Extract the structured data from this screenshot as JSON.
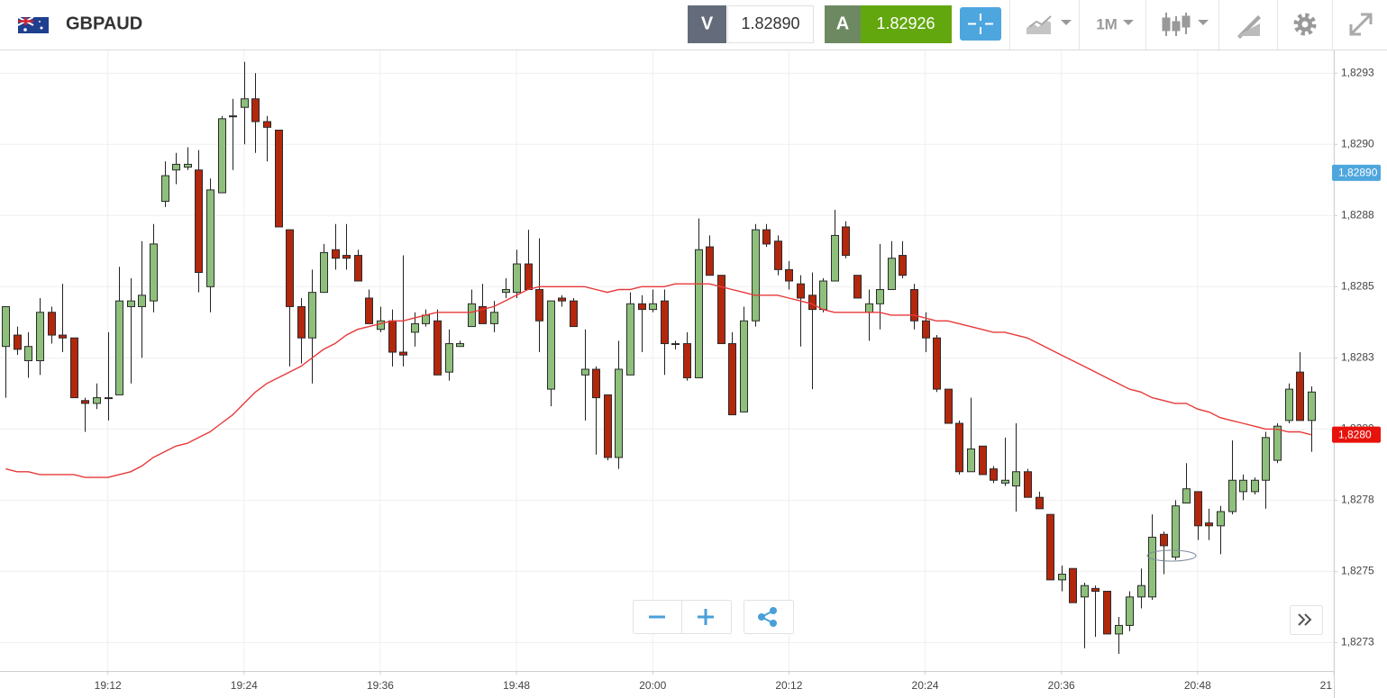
{
  "header": {
    "symbol": "GBPAUD",
    "sell_label": "V",
    "sell_price": "1.82890",
    "buy_label": "A",
    "buy_price": "1.82926",
    "timeframe": "1M"
  },
  "chart_data": {
    "type": "candlestick",
    "x": [
      "19:03",
      "19:04",
      "19:05",
      "19:06",
      "19:07",
      "19:08",
      "19:09",
      "19:10",
      "19:11",
      "19:12",
      "19:13",
      "19:14",
      "19:15",
      "19:16",
      "19:17",
      "19:18",
      "19:19",
      "19:20",
      "19:21",
      "19:22",
      "19:23",
      "19:24",
      "19:25",
      "19:26",
      "19:27",
      "19:28",
      "19:29",
      "19:30",
      "19:31",
      "19:32",
      "19:33",
      "19:34",
      "19:35",
      "19:36",
      "19:37",
      "19:38",
      "19:39",
      "19:40",
      "19:41",
      "19:42",
      "19:43",
      "19:44",
      "19:45",
      "19:46",
      "19:47",
      "19:48",
      "19:49",
      "19:50",
      "19:51",
      "19:52",
      "19:53",
      "19:54",
      "19:55",
      "19:56",
      "19:57",
      "19:58",
      "19:59",
      "20:00",
      "20:01",
      "20:02",
      "20:03",
      "20:04",
      "20:05",
      "20:06",
      "20:07",
      "20:08",
      "20:09",
      "20:10",
      "20:11",
      "20:12",
      "20:13",
      "20:14",
      "20:15",
      "20:16",
      "20:17",
      "20:18",
      "20:19",
      "20:20",
      "20:21",
      "20:22",
      "20:23",
      "20:24",
      "20:25",
      "20:26",
      "20:27",
      "20:28",
      "20:29",
      "20:30",
      "20:31",
      "20:32",
      "20:33",
      "20:34",
      "20:35",
      "20:36",
      "20:37",
      "20:38",
      "20:39",
      "20:40",
      "20:41",
      "20:42",
      "20:43",
      "20:44",
      "20:45",
      "20:46",
      "20:47",
      "20:48",
      "20:49",
      "20:50",
      "20:51",
      "20:52",
      "20:53",
      "20:54",
      "20:55",
      "20:56",
      "20:57",
      "20:58"
    ],
    "open": [
      1.82829,
      1.82833,
      1.82824,
      1.82824,
      1.82841,
      1.82833,
      1.82832,
      1.8281,
      1.82809,
      1.82811,
      1.82812,
      1.82843,
      1.82843,
      1.82845,
      1.8288,
      1.82891,
      1.82892,
      1.82891,
      1.8285,
      1.82883,
      1.8291,
      1.82913,
      1.82916,
      1.82908,
      1.82905,
      1.8287,
      1.82843,
      1.82832,
      1.82848,
      1.82863,
      1.82861,
      1.82861,
      1.82846,
      1.82835,
      1.82838,
      1.82827,
      1.82834,
      1.82837,
      1.82838,
      1.8282,
      1.82829,
      1.82836,
      1.82843,
      1.82837,
      1.82848,
      1.82848,
      1.82858,
      1.82849,
      1.82814,
      1.82846,
      1.82845,
      1.82819,
      1.82821,
      1.82812,
      1.8279,
      1.82819,
      1.82844,
      1.82842,
      1.82845,
      1.8283,
      1.8283,
      1.82818,
      1.82864,
      1.82854,
      1.8283,
      1.82806,
      1.82838,
      1.8287,
      1.82866,
      1.82856,
      1.82851,
      1.82847,
      1.82842,
      1.82852,
      1.82871,
      1.82854,
      1.82841,
      1.82844,
      1.82849,
      1.82861,
      1.82849,
      1.82838,
      1.82832,
      1.82814,
      1.82802,
      1.82785,
      1.82794,
      1.82786,
      1.82781,
      1.8278,
      1.82785,
      1.82776,
      1.8277,
      1.82747,
      1.82751,
      1.82741,
      1.82744,
      1.82743,
      1.82728,
      1.82731,
      1.82741,
      1.82741,
      1.82763,
      1.82755,
      1.82774,
      1.82778,
      1.82767,
      1.82766,
      1.82771,
      1.82778,
      1.82778,
      1.82782,
      1.82789,
      1.82803,
      1.8282,
      1.82803
    ],
    "high": [
      1.82843,
      1.82836,
      1.82834,
      1.82846,
      1.82843,
      1.82851,
      1.82832,
      1.82811,
      1.82816,
      1.82834,
      1.82857,
      1.82853,
      1.82866,
      1.82872,
      1.82894,
      1.82897,
      1.82899,
      1.82898,
      1.82888,
      1.8291,
      1.82916,
      1.82929,
      1.82925,
      1.8291,
      1.82905,
      1.8287,
      1.82846,
      1.82856,
      1.82865,
      1.82872,
      1.82872,
      1.82863,
      1.82849,
      1.82843,
      1.82842,
      1.82861,
      1.82841,
      1.82842,
      1.82842,
      1.82835,
      1.82831,
      1.82849,
      1.82851,
      1.82845,
      1.82853,
      1.82863,
      1.8287,
      1.82867,
      1.82845,
      1.82847,
      1.82846,
      1.82835,
      1.82822,
      1.82812,
      1.82831,
      1.82848,
      1.82847,
      1.82849,
      1.82849,
      1.82831,
      1.82834,
      1.82874,
      1.82868,
      1.82854,
      1.82834,
      1.82843,
      1.82872,
      1.82872,
      1.82868,
      1.82859,
      1.82854,
      1.82855,
      1.82853,
      1.82877,
      1.82873,
      1.82854,
      1.82849,
      1.82865,
      1.82866,
      1.82866,
      1.82851,
      1.82841,
      1.82833,
      1.82814,
      1.82803,
      1.82811,
      1.82794,
      1.82787,
      1.82797,
      1.82802,
      1.82786,
      1.82778,
      1.8277,
      1.82752,
      1.82751,
      1.82746,
      1.82745,
      1.82743,
      1.82734,
      1.82743,
      1.82751,
      1.8277,
      1.82764,
      1.82775,
      1.82788,
      1.82778,
      1.82772,
      1.82773,
      1.82796,
      1.82784,
      1.82783,
      1.82799,
      1.82802,
      1.82816,
      1.82827,
      1.82815
    ],
    "low": [
      1.82811,
      1.82826,
      1.82818,
      1.82819,
      1.8283,
      1.82827,
      1.82811,
      1.82799,
      1.82807,
      1.82803,
      1.82812,
      1.82816,
      1.82825,
      1.82841,
      1.82878,
      1.82886,
      1.82891,
      1.82848,
      1.82841,
      1.82883,
      1.82891,
      1.829,
      1.82897,
      1.82894,
      1.82871,
      1.82822,
      1.82823,
      1.82816,
      1.82848,
      1.82856,
      1.82856,
      1.82852,
      1.82837,
      1.82834,
      1.82822,
      1.82822,
      1.82829,
      1.82836,
      1.82819,
      1.82817,
      1.82829,
      1.82836,
      1.82837,
      1.82834,
      1.82846,
      1.82846,
      1.82849,
      1.82827,
      1.82808,
      1.82843,
      1.82836,
      1.82803,
      1.82791,
      1.82789,
      1.82786,
      1.82819,
      1.82827,
      1.82841,
      1.82819,
      1.82828,
      1.82817,
      1.82818,
      1.82854,
      1.8283,
      1.82805,
      1.82806,
      1.82836,
      1.82864,
      1.82854,
      1.82849,
      1.82829,
      1.82814,
      1.82841,
      1.82852,
      1.8286,
      1.82846,
      1.82831,
      1.82835,
      1.82849,
      1.82853,
      1.82835,
      1.82827,
      1.82813,
      1.82802,
      1.82784,
      1.82785,
      1.82784,
      1.82781,
      1.8278,
      1.82771,
      1.82776,
      1.82772,
      1.82747,
      1.82743,
      1.82739,
      1.82723,
      1.82727,
      1.82728,
      1.82721,
      1.82729,
      1.82737,
      1.8274,
      1.82749,
      1.82754,
      1.82774,
      1.82761,
      1.82761,
      1.82756,
      1.8277,
      1.82775,
      1.82777,
      1.82772,
      1.82788,
      1.82802,
      1.82803,
      1.82792
    ],
    "close": [
      1.82843,
      1.82828,
      1.82829,
      1.82841,
      1.82833,
      1.82832,
      1.82811,
      1.82809,
      1.82811,
      1.82811,
      1.82845,
      1.82845,
      1.82847,
      1.82865,
      1.82889,
      1.82893,
      1.82893,
      1.82855,
      1.82884,
      1.82909,
      1.8291,
      1.82916,
      1.82908,
      1.82906,
      1.82871,
      1.82843,
      1.82832,
      1.82848,
      1.82862,
      1.8286,
      1.8286,
      1.82852,
      1.82837,
      1.82838,
      1.82827,
      1.82826,
      1.82837,
      1.8284,
      1.82819,
      1.8283,
      1.8283,
      1.82844,
      1.82837,
      1.82841,
      1.82849,
      1.82858,
      1.82849,
      1.82838,
      1.82845,
      1.82845,
      1.82836,
      1.82821,
      1.82811,
      1.8279,
      1.82821,
      1.82844,
      1.82842,
      1.82844,
      1.8283,
      1.8283,
      1.82818,
      1.82863,
      1.82854,
      1.8283,
      1.82805,
      1.82838,
      1.8287,
      1.82865,
      1.82856,
      1.82852,
      1.82846,
      1.82842,
      1.82852,
      1.82868,
      1.82861,
      1.82846,
      1.82844,
      1.82849,
      1.8286,
      1.82854,
      1.82838,
      1.82832,
      1.82814,
      1.82802,
      1.82785,
      1.82793,
      1.82784,
      1.82782,
      1.82782,
      1.82785,
      1.82776,
      1.82772,
      1.82747,
      1.82749,
      1.82739,
      1.82745,
      1.82743,
      1.82728,
      1.82731,
      1.82741,
      1.82745,
      1.82762,
      1.82759,
      1.82773,
      1.82779,
      1.82766,
      1.82766,
      1.82771,
      1.82782,
      1.82782,
      1.82782,
      1.82797,
      1.82801,
      1.82814,
      1.82803,
      1.82813
    ],
    "up_color": "#8ec07c",
    "down_color": "#b3270d",
    "ma": {
      "color": "#e8393a",
      "values": [
        1.82786,
        1.82785,
        1.82785,
        1.82784,
        1.82784,
        1.82784,
        1.82784,
        1.82783,
        1.82783,
        1.82783,
        1.82784,
        1.82785,
        1.82787,
        1.8279,
        1.82792,
        1.82794,
        1.82795,
        1.82797,
        1.82799,
        1.82802,
        1.82805,
        1.82809,
        1.82813,
        1.82816,
        1.82818,
        1.8282,
        1.82822,
        1.82825,
        1.82828,
        1.8283,
        1.82833,
        1.82835,
        1.82836,
        1.82837,
        1.82838,
        1.82838,
        1.82839,
        1.8284,
        1.82841,
        1.82841,
        1.82841,
        1.82841,
        1.82842,
        1.82843,
        1.82845,
        1.82847,
        1.82849,
        1.8285,
        1.8285,
        1.8285,
        1.8285,
        1.8285,
        1.82849,
        1.82848,
        1.82849,
        1.82849,
        1.8285,
        1.8285,
        1.8285,
        1.82851,
        1.82851,
        1.82851,
        1.82851,
        1.8285,
        1.82849,
        1.82848,
        1.82847,
        1.82847,
        1.82847,
        1.82846,
        1.82845,
        1.82844,
        1.82842,
        1.82841,
        1.82841,
        1.82841,
        1.82841,
        1.82841,
        1.8284,
        1.8284,
        1.8284,
        1.82839,
        1.82838,
        1.82838,
        1.82837,
        1.82836,
        1.82835,
        1.82834,
        1.82834,
        1.82833,
        1.82832,
        1.8283,
        1.82828,
        1.82826,
        1.82824,
        1.82822,
        1.8282,
        1.82818,
        1.82816,
        1.82814,
        1.82813,
        1.82811,
        1.8281,
        1.82809,
        1.82809,
        1.82807,
        1.82806,
        1.82804,
        1.82803,
        1.82802,
        1.82801,
        1.828,
        1.828,
        1.82799,
        1.82799,
        1.82798
      ]
    },
    "xlim": [
      "19:02:30",
      "21:00"
    ],
    "xticks": [
      "19:12",
      "19:24",
      "19:36",
      "19:48",
      "20:00",
      "20:12",
      "20:24",
      "20:36",
      "20:48",
      "21"
    ],
    "ylim": [
      1.82715,
      1.82933
    ],
    "yticks": [
      {
        "value": 1.82725,
        "label": "1,8273"
      },
      {
        "value": 1.8275,
        "label": "1,8275"
      },
      {
        "value": 1.82775,
        "label": "1,8278"
      },
      {
        "value": 1.828,
        "label": "1,8280"
      },
      {
        "value": 1.82825,
        "label": "1,8283"
      },
      {
        "value": 1.8285,
        "label": "1,8285"
      },
      {
        "value": 1.82875,
        "label": "1,8288"
      },
      {
        "value": 1.829,
        "label": "1,8290"
      },
      {
        "value": 1.82925,
        "label": "1,8293"
      }
    ],
    "grid": true,
    "price_tags": [
      {
        "value": 1.8289,
        "label": "1,82890",
        "color": "#4ea6dd"
      },
      {
        "value": 1.82798,
        "label": "1,8280",
        "color": "#e8120c"
      }
    ]
  }
}
